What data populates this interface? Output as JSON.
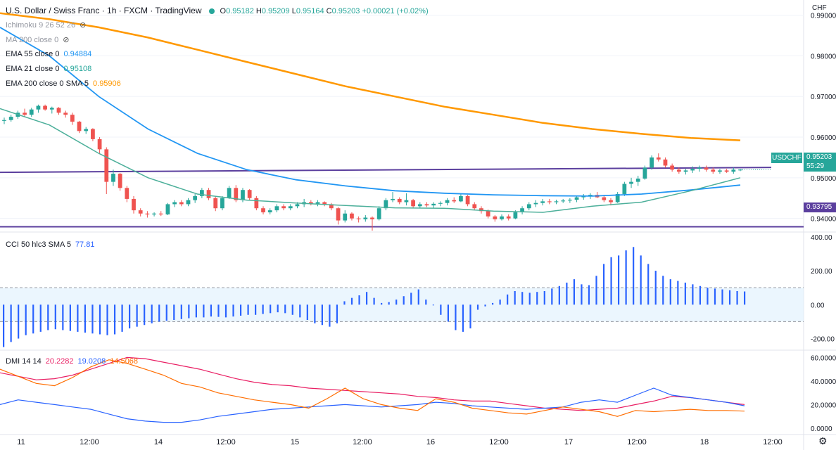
{
  "header": {
    "title": "U.S. Dollar / Swiss Franc · 1h · FXCM · TradingView",
    "ohlc": {
      "o_label": "O",
      "o": "0.95182",
      "h_label": "H",
      "h": "0.95209",
      "l_label": "L",
      "l": "0.95164",
      "c_label": "C",
      "c": "0.95203",
      "change": "+0.00021 (+0.02%)"
    }
  },
  "indicators": [
    {
      "label": "Ichimoku 9 26 52 26",
      "value": ""
    },
    {
      "label": "MA 200 close 0",
      "value": ""
    },
    {
      "label": "EMA 55 close 0",
      "value": "0.94884"
    },
    {
      "label": "EMA 21 close 0",
      "value": "0.95108"
    },
    {
      "label": "EMA 200 close 0 SMA 5",
      "value": "0.95906"
    }
  ],
  "cci_label": {
    "label": "CCI 50 hlc3 SMA 5",
    "value": "77.81"
  },
  "dmi_label": {
    "label": "DMI 14 14",
    "v1": "20.2282",
    "v2": "19.0208",
    "v3": "14.5068"
  },
  "currency": "CHF",
  "symbol_tag": "USDCHF",
  "price_tag": "0.95203",
  "countdown": "55:29",
  "level_tag": "0.93795",
  "colors": {
    "up": "#26a69a",
    "down": "#ef5350",
    "ema200": "#ff9800",
    "ema55": "#2196f3",
    "ema21": "#4caf9a",
    "level": "#5b3f9e",
    "cci": "#2962ff",
    "dmi_plus": "#e91e63",
    "dmi_minus": "#2962ff",
    "adx": "#ff6d00"
  },
  "chart_data": [
    {
      "type": "candlestick",
      "y_ticks": [
        "0.99000",
        "0.98000",
        "0.97000",
        "0.96000",
        "0.95000",
        "0.94000"
      ],
      "ylim": [
        0.937,
        0.992
      ],
      "x_ticks": [
        "11",
        "12:00",
        "14",
        "12:00",
        "15",
        "12:00",
        "16",
        "12:00",
        "17",
        "12:00",
        "18",
        "12:00"
      ],
      "horizontal_levels": [
        0.9522,
        0.93795
      ],
      "candles": [
        [
          0.964,
          0.9648,
          0.9632,
          0.9642
        ],
        [
          0.9642,
          0.9655,
          0.9638,
          0.965
        ],
        [
          0.965,
          0.9665,
          0.9645,
          0.966
        ],
        [
          0.966,
          0.967,
          0.965,
          0.9655
        ],
        [
          0.9655,
          0.9672,
          0.965,
          0.9668
        ],
        [
          0.9668,
          0.968,
          0.966,
          0.9677
        ],
        [
          0.9677,
          0.968,
          0.9665,
          0.9668
        ],
        [
          0.9668,
          0.9675,
          0.9658,
          0.9672
        ],
        [
          0.9672,
          0.9674,
          0.9655,
          0.966
        ],
        [
          0.966,
          0.9665,
          0.9648,
          0.9655
        ],
        [
          0.9655,
          0.966,
          0.963,
          0.9638
        ],
        [
          0.9638,
          0.964,
          0.961,
          0.9615
        ],
        [
          0.9615,
          0.9625,
          0.9608,
          0.962
        ],
        [
          0.962,
          0.9622,
          0.959,
          0.9595
        ],
        [
          0.9595,
          0.96,
          0.956,
          0.957
        ],
        [
          0.957,
          0.9575,
          0.946,
          0.949
        ],
        [
          0.949,
          0.952,
          0.948,
          0.951
        ],
        [
          0.951,
          0.9512,
          0.9468,
          0.9475
        ],
        [
          0.9475,
          0.948,
          0.944,
          0.9448
        ],
        [
          0.9448,
          0.9455,
          0.9412,
          0.942
        ],
        [
          0.942,
          0.9425,
          0.9405,
          0.9412
        ],
        [
          0.9412,
          0.9418,
          0.9402,
          0.941
        ],
        [
          0.941,
          0.9415,
          0.9405,
          0.9412
        ],
        [
          0.9412,
          0.9418,
          0.9406,
          0.941
        ],
        [
          0.941,
          0.9438,
          0.9408,
          0.9435
        ],
        [
          0.9435,
          0.9445,
          0.9428,
          0.944
        ],
        [
          0.944,
          0.9445,
          0.943,
          0.9435
        ],
        [
          0.9435,
          0.945,
          0.943,
          0.9445
        ],
        [
          0.9445,
          0.946,
          0.9438,
          0.9455
        ],
        [
          0.9455,
          0.9475,
          0.945,
          0.947
        ],
        [
          0.947,
          0.9475,
          0.9445,
          0.945
        ],
        [
          0.945,
          0.9455,
          0.9418,
          0.9425
        ],
        [
          0.9425,
          0.9455,
          0.942,
          0.945
        ],
        [
          0.945,
          0.948,
          0.9448,
          0.9475
        ],
        [
          0.9475,
          0.9482,
          0.944,
          0.9445
        ],
        [
          0.9445,
          0.9475,
          0.944,
          0.947
        ],
        [
          0.947,
          0.9472,
          0.9445,
          0.945
        ],
        [
          0.945,
          0.9455,
          0.942,
          0.9425
        ],
        [
          0.9425,
          0.943,
          0.941,
          0.9415
        ],
        [
          0.9415,
          0.9425,
          0.941,
          0.942
        ],
        [
          0.942,
          0.9435,
          0.9415,
          0.943
        ],
        [
          0.943,
          0.9435,
          0.942,
          0.9425
        ],
        [
          0.9425,
          0.9435,
          0.942,
          0.943
        ],
        [
          0.943,
          0.944,
          0.9425,
          0.9435
        ],
        [
          0.9435,
          0.9448,
          0.9428,
          0.944
        ],
        [
          0.944,
          0.9445,
          0.9432,
          0.9436
        ],
        [
          0.9436,
          0.9445,
          0.943,
          0.944
        ],
        [
          0.944,
          0.9442,
          0.943,
          0.9435
        ],
        [
          0.9435,
          0.9438,
          0.942,
          0.9425
        ],
        [
          0.9425,
          0.9428,
          0.9385,
          0.9395
        ],
        [
          0.9395,
          0.942,
          0.939,
          0.9412
        ],
        [
          0.9412,
          0.9415,
          0.9395,
          0.94
        ],
        [
          0.94,
          0.9405,
          0.939,
          0.9398
        ],
        [
          0.9398,
          0.9408,
          0.9392,
          0.9402
        ],
        [
          0.9402,
          0.9405,
          0.937,
          0.9398
        ],
        [
          0.9398,
          0.943,
          0.9395,
          0.9425
        ],
        [
          0.9425,
          0.945,
          0.942,
          0.9445
        ],
        [
          0.9445,
          0.9465,
          0.944,
          0.9448
        ],
        [
          0.9448,
          0.9452,
          0.9435,
          0.944
        ],
        [
          0.944,
          0.9462,
          0.9432,
          0.9445
        ],
        [
          0.9445,
          0.9448,
          0.9425,
          0.943
        ],
        [
          0.943,
          0.944,
          0.9425,
          0.9435
        ],
        [
          0.9435,
          0.944,
          0.9428,
          0.9432
        ],
        [
          0.9432,
          0.944,
          0.9425,
          0.9436
        ],
        [
          0.9436,
          0.9442,
          0.943,
          0.9438
        ],
        [
          0.9438,
          0.945,
          0.9432,
          0.9445
        ],
        [
          0.9445,
          0.9452,
          0.9438,
          0.9442
        ],
        [
          0.9442,
          0.946,
          0.944,
          0.9455
        ],
        [
          0.9455,
          0.9458,
          0.943,
          0.9435
        ],
        [
          0.9435,
          0.944,
          0.942,
          0.9425
        ],
        [
          0.9425,
          0.943,
          0.9412,
          0.9418
        ],
        [
          0.9418,
          0.9422,
          0.94,
          0.9405
        ],
        [
          0.9405,
          0.9408,
          0.9392,
          0.9398
        ],
        [
          0.9398,
          0.941,
          0.9395,
          0.9405
        ],
        [
          0.9405,
          0.941,
          0.9395,
          0.94
        ],
        [
          0.94,
          0.942,
          0.9398,
          0.9415
        ],
        [
          0.9415,
          0.943,
          0.941,
          0.9425
        ],
        [
          0.9425,
          0.944,
          0.942,
          0.9435
        ],
        [
          0.9435,
          0.9445,
          0.9428,
          0.9438
        ],
        [
          0.9438,
          0.9448,
          0.9432,
          0.9442
        ],
        [
          0.9442,
          0.9448,
          0.9435,
          0.944
        ],
        [
          0.944,
          0.9446,
          0.9435,
          0.9442
        ],
        [
          0.9442,
          0.9448,
          0.9438,
          0.9444
        ],
        [
          0.9444,
          0.945,
          0.9438,
          0.9446
        ],
        [
          0.9446,
          0.9456,
          0.944,
          0.9452
        ],
        [
          0.9452,
          0.946,
          0.9446,
          0.9455
        ],
        [
          0.9455,
          0.9462,
          0.9448,
          0.9458
        ],
        [
          0.9458,
          0.9465,
          0.945,
          0.9452
        ],
        [
          0.9452,
          0.9458,
          0.944,
          0.9445
        ],
        [
          0.9445,
          0.945,
          0.9432,
          0.944
        ],
        [
          0.944,
          0.9465,
          0.9438,
          0.946
        ],
        [
          0.946,
          0.949,
          0.9455,
          0.9485
        ],
        [
          0.9485,
          0.95,
          0.9475,
          0.949
        ],
        [
          0.949,
          0.9505,
          0.948,
          0.9498
        ],
        [
          0.9498,
          0.953,
          0.9495,
          0.9525
        ],
        [
          0.9525,
          0.9555,
          0.952,
          0.955
        ],
        [
          0.955,
          0.956,
          0.954,
          0.9545
        ],
        [
          0.9545,
          0.955,
          0.9525,
          0.953
        ],
        [
          0.953,
          0.9535,
          0.9515,
          0.952
        ],
        [
          0.952,
          0.9525,
          0.951,
          0.9515
        ],
        [
          0.9515,
          0.9522,
          0.9508,
          0.9518
        ],
        [
          0.9518,
          0.9528,
          0.9512,
          0.9522
        ],
        [
          0.9522,
          0.953,
          0.9515,
          0.9525
        ],
        [
          0.9525,
          0.953,
          0.9515,
          0.952
        ],
        [
          0.952,
          0.9525,
          0.951,
          0.9515
        ],
        [
          0.9515,
          0.9522,
          0.951,
          0.9518
        ],
        [
          0.9518,
          0.9522,
          0.9512,
          0.9515
        ],
        [
          0.9515,
          0.9525,
          0.951,
          0.952
        ],
        [
          0.95182,
          0.95209,
          0.95164,
          0.95203
        ]
      ],
      "series": [
        {
          "name": "EMA 200",
          "values": [
            0.9905,
            0.989,
            0.987,
            0.9845,
            0.9815,
            0.9785,
            0.9755,
            0.9725,
            0.97,
            0.9675,
            0.9655,
            0.9635,
            0.962,
            0.9608,
            0.9598,
            0.9592
          ]
        },
        {
          "name": "EMA 55",
          "values": [
            0.987,
            0.98,
            0.97,
            0.962,
            0.956,
            0.952,
            0.9495,
            0.948,
            0.9468,
            0.9462,
            0.9458,
            0.9456,
            0.9455,
            0.946,
            0.947,
            0.9482
          ]
        },
        {
          "name": "EMA 21",
          "values": [
            0.967,
            0.963,
            0.956,
            0.95,
            0.946,
            0.9445,
            0.9438,
            0.9432,
            0.9426,
            0.9425,
            0.9418,
            0.9415,
            0.943,
            0.944,
            0.9468,
            0.95
          ]
        }
      ]
    },
    {
      "type": "bar",
      "title": "CCI 50 hlc3 SMA 5",
      "y_ticks": [
        "400.00",
        "200.00",
        "0.00",
        "-200.00"
      ],
      "ylim": [
        -260,
        420
      ],
      "band": [
        -100,
        100
      ],
      "values": [
        -250,
        -220,
        -200,
        -180,
        -170,
        -160,
        -150,
        -145,
        -150,
        -155,
        -160,
        -165,
        -170,
        -175,
        -180,
        -175,
        -160,
        -140,
        -130,
        -120,
        -110,
        -100,
        -95,
        -90,
        -85,
        -80,
        -75,
        -75,
        -70,
        -72,
        -75,
        -70,
        -65,
        -60,
        -60,
        -55,
        -50,
        -45,
        -50,
        -60,
        -75,
        -90,
        -110,
        -120,
        -130,
        -110,
        20,
        40,
        55,
        75,
        40,
        10,
        15,
        30,
        50,
        70,
        90,
        30,
        0,
        -60,
        -100,
        -150,
        -160,
        -140,
        -30,
        -10,
        10,
        30,
        60,
        80,
        75,
        70,
        75,
        80,
        95,
        110,
        130,
        150,
        120,
        115,
        170,
        240,
        280,
        290,
        320,
        340,
        290,
        240,
        200,
        170,
        150,
        140,
        130,
        120,
        110,
        100,
        95,
        90,
        85,
        80,
        77.81
      ]
    },
    {
      "type": "line",
      "title": "DMI 14 14",
      "y_ticks": [
        "60.0000",
        "40.0000",
        "20.0000",
        "0.0000"
      ],
      "ylim": [
        -3,
        65
      ],
      "series": [
        {
          "name": "DMI 14 14 (+DI)",
          "values": [
            47,
            44,
            41,
            42,
            45,
            50,
            55,
            60,
            59,
            56,
            53,
            50,
            46,
            42,
            39,
            37,
            36,
            34,
            33,
            32,
            31,
            30,
            29,
            27,
            26,
            24,
            23,
            23,
            21,
            19,
            17,
            16,
            15,
            16,
            17,
            20,
            23,
            27,
            26,
            24,
            22,
            20
          ]
        },
        {
          "name": "DMI 14 14 (-DI)",
          "values": [
            20,
            24,
            22,
            20,
            18,
            16,
            12,
            8,
            6,
            5,
            5,
            7,
            10,
            12,
            14,
            16,
            17,
            18,
            19,
            20,
            19,
            18,
            19,
            20,
            22,
            21,
            19,
            18,
            17,
            16,
            17,
            18,
            22,
            24,
            22,
            28,
            34,
            28,
            26,
            24,
            22,
            19
          ]
        },
        {
          "name": "DMI 14 14 (ADX)",
          "values": [
            50,
            44,
            38,
            36,
            43,
            52,
            58,
            55,
            50,
            45,
            38,
            35,
            30,
            27,
            24,
            22,
            20,
            17,
            25,
            34,
            25,
            20,
            17,
            15,
            25,
            22,
            17,
            15,
            13,
            12,
            15,
            18,
            16,
            14,
            10,
            15,
            14,
            15,
            16,
            15,
            15,
            14.5
          ]
        }
      ]
    }
  ]
}
